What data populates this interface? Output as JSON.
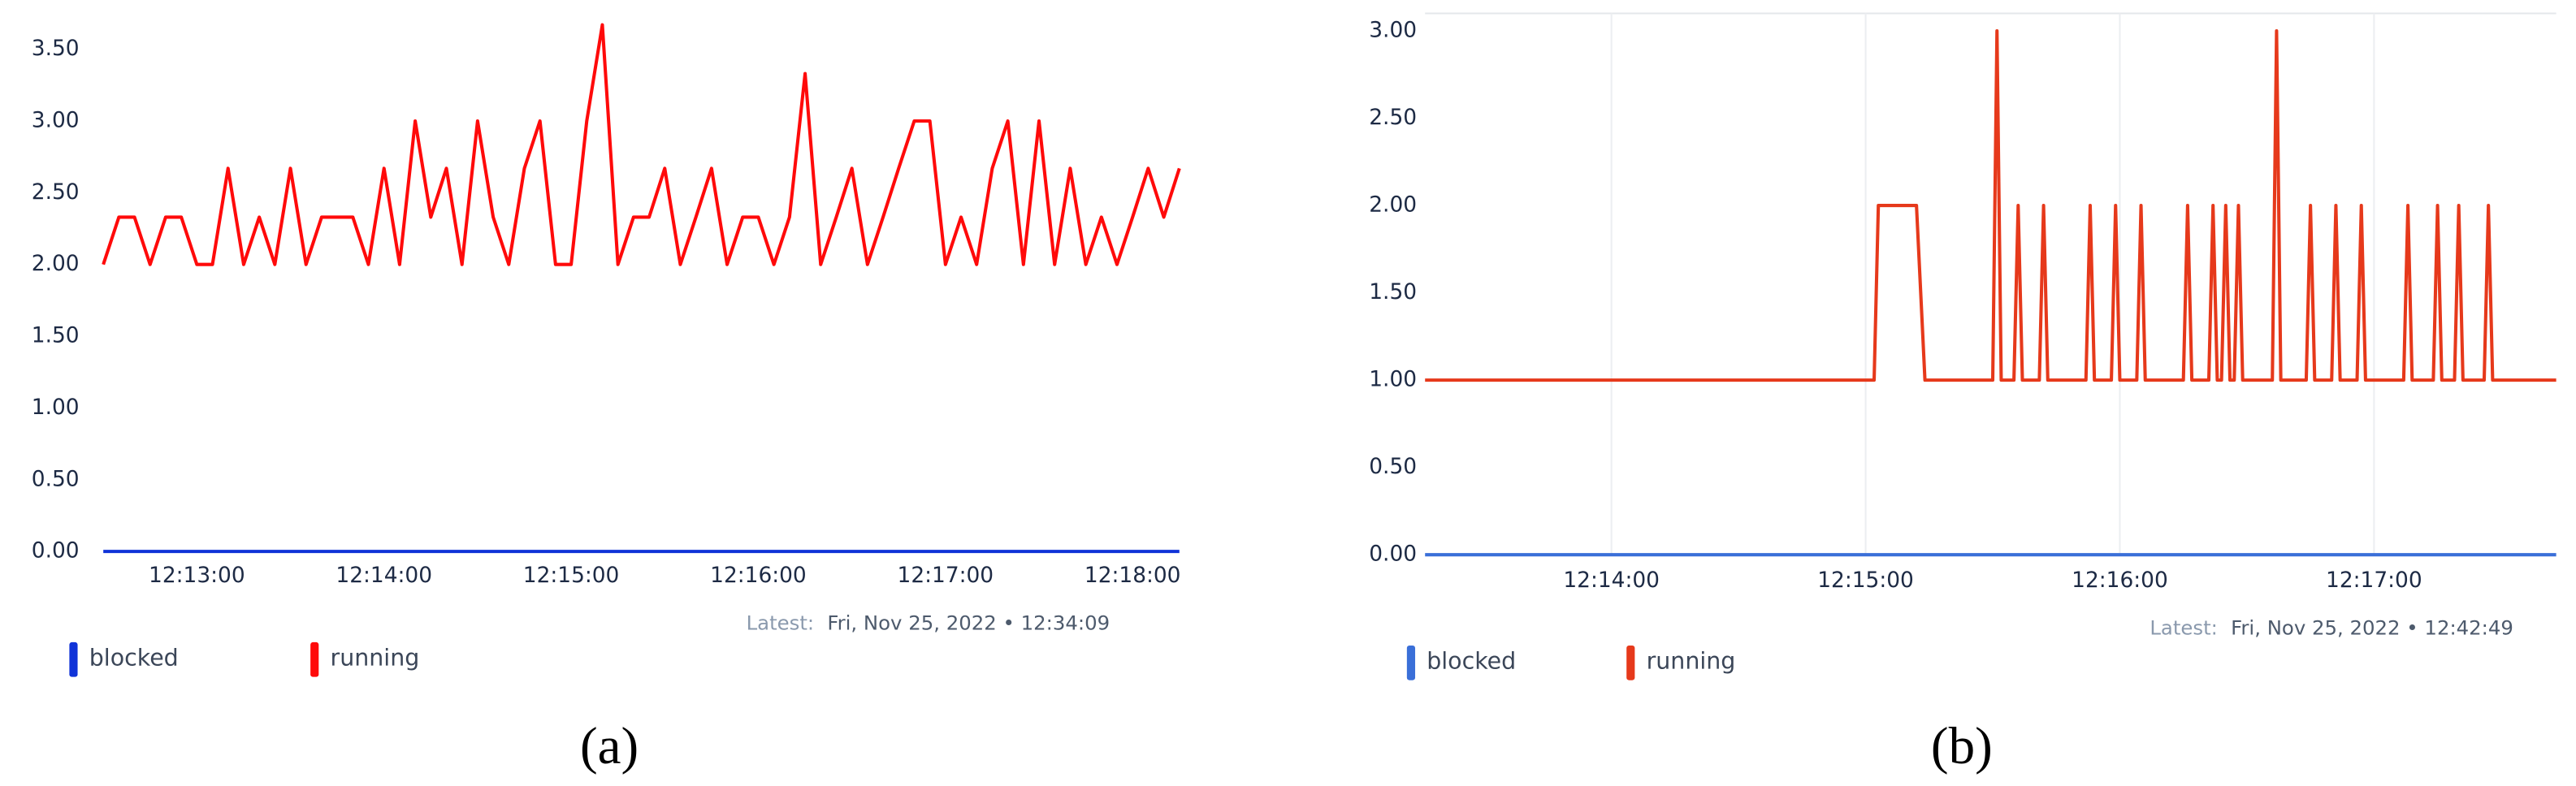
{
  "chart_data": [
    {
      "type": "line",
      "caption": "(a)",
      "latest_label": "Latest:",
      "latest": "Fri, Nov 25, 2022 • 12:34:09",
      "grid": false,
      "xlim": [
        "12:12:26",
        "12:18:17"
      ],
      "xticks": [
        "12:13:00",
        "12:14:00",
        "12:15:00",
        "12:16:00",
        "12:17:00",
        "12:18:00"
      ],
      "ylim": [
        0,
        3.75
      ],
      "yticks": [
        {
          "value": 0,
          "label": "0.00"
        },
        {
          "value": 0.5,
          "label": "0.50"
        },
        {
          "value": 1,
          "label": "1.00"
        },
        {
          "value": 1.5,
          "label": "1.50"
        },
        {
          "value": 2,
          "label": "2.00"
        },
        {
          "value": 2.5,
          "label": "2.50"
        },
        {
          "value": 3,
          "label": "3.00"
        },
        {
          "value": 3.5,
          "label": "3.50"
        }
      ],
      "x": [
        "12:12:30",
        "12:12:35",
        "12:12:40",
        "12:12:45",
        "12:12:50",
        "12:12:55",
        "12:13:00",
        "12:13:05",
        "12:13:10",
        "12:13:15",
        "12:13:20",
        "12:13:25",
        "12:13:30",
        "12:13:35",
        "12:13:40",
        "12:13:45",
        "12:13:50",
        "12:13:55",
        "12:14:00",
        "12:14:05",
        "12:14:10",
        "12:14:15",
        "12:14:20",
        "12:14:25",
        "12:14:30",
        "12:14:35",
        "12:14:40",
        "12:14:45",
        "12:14:50",
        "12:14:55",
        "12:15:00",
        "12:15:05",
        "12:15:10",
        "12:15:15",
        "12:15:20",
        "12:15:25",
        "12:15:30",
        "12:15:35",
        "12:15:40",
        "12:15:45",
        "12:15:50",
        "12:15:55",
        "12:16:00",
        "12:16:05",
        "12:16:10",
        "12:16:15",
        "12:16:20",
        "12:16:25",
        "12:16:30",
        "12:16:35",
        "12:16:40",
        "12:16:45",
        "12:16:50",
        "12:16:55",
        "12:17:00",
        "12:17:05",
        "12:17:10",
        "12:17:15",
        "12:17:20",
        "12:17:25",
        "12:17:30",
        "12:17:35",
        "12:17:40",
        "12:17:45",
        "12:17:50",
        "12:17:55",
        "12:18:00",
        "12:18:05",
        "12:18:10",
        "12:18:15"
      ],
      "series": [
        {
          "name": "blocked",
          "color": "#1033d8",
          "values": [
            0,
            0,
            0,
            0,
            0,
            0,
            0,
            0,
            0,
            0,
            0,
            0,
            0,
            0,
            0,
            0,
            0,
            0,
            0,
            0,
            0,
            0,
            0,
            0,
            0,
            0,
            0,
            0,
            0,
            0,
            0,
            0,
            0,
            0,
            0,
            0,
            0,
            0,
            0,
            0,
            0,
            0,
            0,
            0,
            0,
            0,
            0,
            0,
            0,
            0,
            0,
            0,
            0,
            0,
            0,
            0,
            0,
            0,
            0,
            0,
            0,
            0,
            0,
            0,
            0,
            0,
            0,
            0,
            0,
            0
          ]
        },
        {
          "name": "running",
          "color": "#ff0a0a",
          "values": [
            2.0,
            2.33,
            2.33,
            2.0,
            2.33,
            2.33,
            2.0,
            2.0,
            2.67,
            2.0,
            2.33,
            2.0,
            2.67,
            2.0,
            2.33,
            2.33,
            2.33,
            2.0,
            2.67,
            2.0,
            3.0,
            2.33,
            2.67,
            2.0,
            3.0,
            2.33,
            2.0,
            2.67,
            3.0,
            2.0,
            2.0,
            3.0,
            3.67,
            2.0,
            2.33,
            2.33,
            2.67,
            2.0,
            2.33,
            2.67,
            2.0,
            2.33,
            2.33,
            2.0,
            2.33,
            3.33,
            2.0,
            2.33,
            2.67,
            2.0,
            2.33,
            2.67,
            3.0,
            3.0,
            2.0,
            2.33,
            2.0,
            2.67,
            3.0,
            2.0,
            3.0,
            2.0,
            2.67,
            2.0,
            2.33,
            2.0,
            2.33,
            2.67,
            2.33,
            2.67
          ]
        }
      ]
    },
    {
      "type": "line",
      "caption": "(b)",
      "latest_label": "Latest:",
      "latest": "Fri, Nov 25, 2022 • 12:42:49",
      "grid": true,
      "xlim": [
        "12:13:16",
        "12:17:43"
      ],
      "xticks": [
        "12:14:00",
        "12:15:00",
        "12:16:00",
        "12:17:00"
      ],
      "ylim": [
        0,
        3.1
      ],
      "yticks": [
        {
          "value": 0,
          "label": "0.00"
        },
        {
          "value": 0.5,
          "label": "0.50"
        },
        {
          "value": 1,
          "label": "1.00"
        },
        {
          "value": 1.5,
          "label": "1.50"
        },
        {
          "value": 2,
          "label": "2.00"
        },
        {
          "value": 2.5,
          "label": "2.50"
        },
        {
          "value": 3,
          "label": "3.00"
        }
      ],
      "x": [
        "12:13:16",
        "12:15:02",
        "12:15:03",
        "12:15:12",
        "12:15:14",
        "12:15:30",
        "12:15:31",
        "12:15:32",
        "12:15:35",
        "12:15:36",
        "12:15:37",
        "12:15:41",
        "12:15:42",
        "12:15:43",
        "12:15:52",
        "12:15:53",
        "12:15:54",
        "12:15:58",
        "12:15:59",
        "12:16:00",
        "12:16:04",
        "12:16:05",
        "12:16:06",
        "12:16:15",
        "12:16:16",
        "12:16:17",
        "12:16:21",
        "12:16:22",
        "12:16:23",
        "12:16:24",
        "12:16:25",
        "12:16:26",
        "12:16:27",
        "12:16:28",
        "12:16:29",
        "12:16:36",
        "12:16:37",
        "12:16:38",
        "12:16:44",
        "12:16:45",
        "12:16:46",
        "12:16:50",
        "12:16:51",
        "12:16:52",
        "12:16:56",
        "12:16:57",
        "12:16:58",
        "12:17:07",
        "12:17:08",
        "12:17:09",
        "12:17:14",
        "12:17:15",
        "12:17:16",
        "12:17:19",
        "12:17:20",
        "12:17:21",
        "12:17:26",
        "12:17:27",
        "12:17:28",
        "12:17:43"
      ],
      "series": [
        {
          "name": "blocked",
          "color": "#3a6fd8",
          "values": [
            0,
            0,
            0,
            0,
            0,
            0,
            0,
            0,
            0,
            0,
            0,
            0,
            0,
            0,
            0,
            0,
            0,
            0,
            0,
            0,
            0,
            0,
            0,
            0,
            0,
            0,
            0,
            0,
            0,
            0,
            0,
            0,
            0,
            0,
            0,
            0,
            0,
            0,
            0,
            0,
            0,
            0,
            0,
            0,
            0,
            0,
            0,
            0,
            0,
            0,
            0,
            0,
            0,
            0,
            0,
            0,
            0,
            0,
            0,
            0
          ]
        },
        {
          "name": "running",
          "color": "#e6391b",
          "values": [
            1,
            1,
            2,
            2,
            1,
            1,
            3,
            1,
            1,
            2,
            1,
            1,
            2,
            1,
            1,
            2,
            1,
            1,
            2,
            1,
            1,
            2,
            1,
            1,
            2,
            1,
            1,
            2,
            1,
            1,
            2,
            1,
            1,
            2,
            1,
            1,
            3,
            1,
            1,
            2,
            1,
            1,
            2,
            1,
            1,
            2,
            1,
            1,
            2,
            1,
            1,
            2,
            1,
            1,
            2,
            1,
            1,
            2,
            1,
            1
          ]
        }
      ]
    }
  ]
}
